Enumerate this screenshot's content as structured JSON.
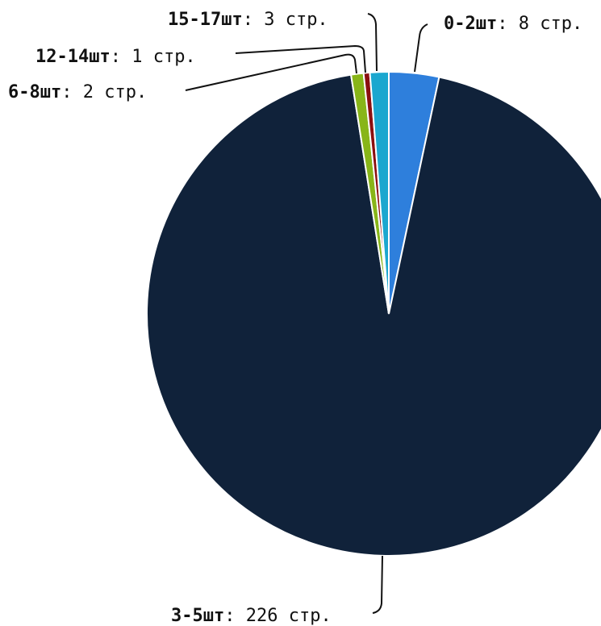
{
  "chart_data": {
    "type": "pie",
    "value_suffix": "стр.",
    "slices": [
      {
        "label": "0-2шт",
        "value": 8,
        "color": "#2e7fdc"
      },
      {
        "label": "3-5шт",
        "value": 226,
        "color": "#10223a"
      },
      {
        "label": "6-8шт",
        "value": 2,
        "color": "#88b518"
      },
      {
        "label": "12-14шт",
        "value": 1,
        "color": "#8b0f0f"
      },
      {
        "label": "15-17шт",
        "value": 3,
        "color": "#1ba7cf"
      }
    ]
  }
}
